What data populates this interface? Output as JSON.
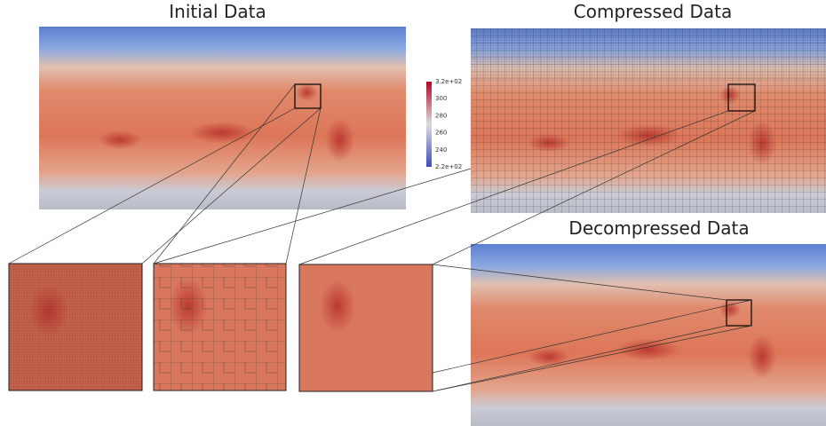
{
  "panels": {
    "initial": {
      "title": "Initial Data"
    },
    "compressed": {
      "title": "Compressed Data"
    },
    "decompressed": {
      "title": "Decompressed Data"
    }
  },
  "colorbar": {
    "labels": [
      "3.2e+02",
      "300",
      "280",
      "260",
      "240",
      "2.2e+02"
    ]
  }
}
